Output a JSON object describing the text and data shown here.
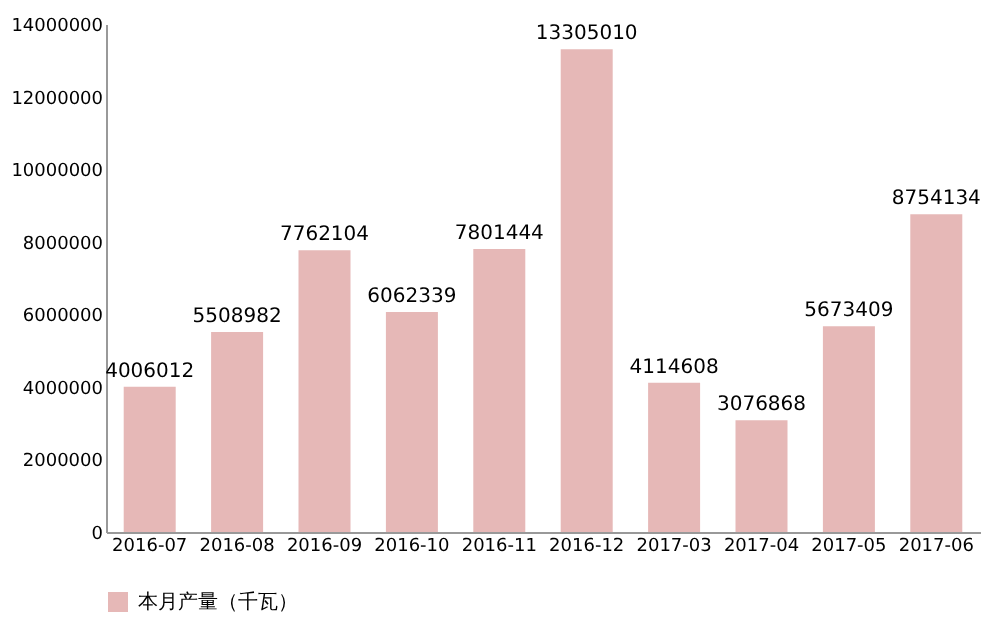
{
  "chart_data": {
    "type": "bar",
    "categories": [
      "2016-07",
      "2016-08",
      "2016-09",
      "2016-10",
      "2016-11",
      "2016-12",
      "2017-03",
      "2017-04",
      "2017-05",
      "2017-06"
    ],
    "series": [
      {
        "name": "本月产量（千瓦）",
        "color": "#e6b8b7",
        "values": [
          4006012,
          5508982,
          7762104,
          6062339,
          7801444,
          13305010,
          4114608,
          3076868,
          5673409,
          8754134
        ]
      }
    ],
    "ylim": [
      0,
      14000000
    ],
    "yticks": [
      0,
      2000000,
      4000000,
      6000000,
      8000000,
      10000000,
      12000000,
      14000000
    ],
    "data_labels": true,
    "grid": false,
    "legend": "bottom"
  }
}
